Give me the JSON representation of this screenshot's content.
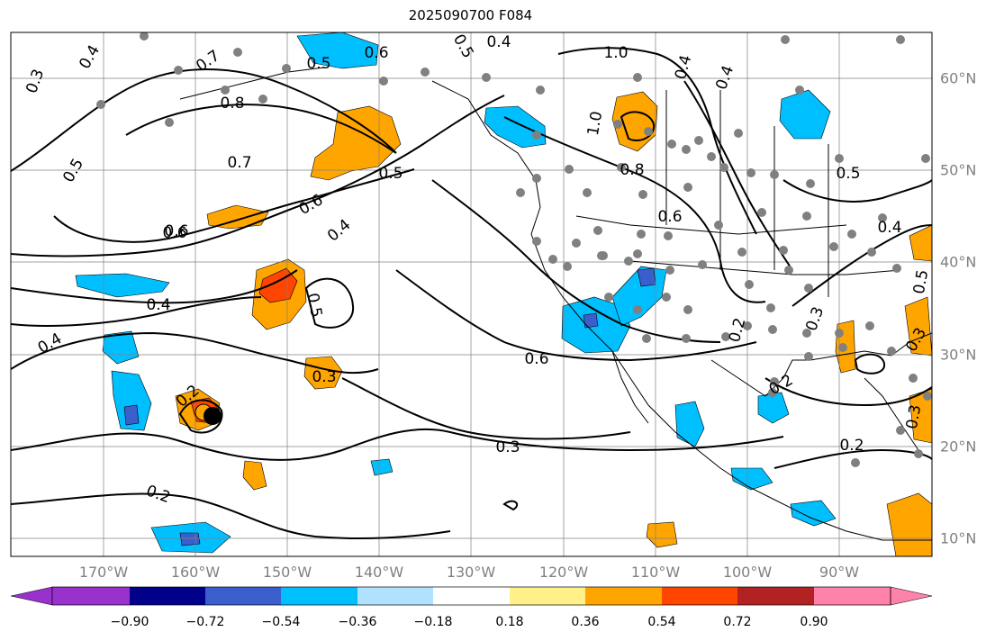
{
  "title": "2025090700 F084",
  "lon_labels": [
    "170°W",
    "160°W",
    "150°W",
    "140°W",
    "130°W",
    "120°W",
    "110°W",
    "100°W",
    "90°W"
  ],
  "lat_labels": [
    "60°N",
    "50°N",
    "40°N",
    "30°N",
    "20°N",
    "10°N"
  ],
  "colorbar": {
    "ticks": [
      "−0.90",
      "−0.72",
      "−0.54",
      "−0.36",
      "−0.18",
      "0.18",
      "0.36",
      "0.54",
      "0.72",
      "0.90"
    ],
    "colors": [
      "#9932cc",
      "#00008b",
      "#3a5fcd",
      "#00bfff",
      "#b0e2ff",
      "#ffffff",
      "#fff08a",
      "#ffa500",
      "#ff4500",
      "#b22222",
      "#ff82ab"
    ]
  },
  "contour_labels": [
    "0.3",
    "0.4",
    "0.7",
    "0.8",
    "0.5",
    "0.6",
    "0.5",
    "0.6",
    "0.4",
    "0.5",
    "0.4",
    "1.0",
    "0.4",
    "1.0",
    "0.8",
    "0.6",
    "0.5",
    "0.4",
    "0.5",
    "0.3",
    "0.6",
    "0.7",
    "0.6",
    "0.5",
    "0.4",
    "0.4",
    "0.5",
    "0.3",
    "0.4",
    "0.3",
    "0.6",
    "0.3",
    "0.2",
    "0.2",
    "0.2",
    "0.3",
    "0.2",
    "0.2"
  ],
  "fill_colors": {
    "blue": "#00bfff",
    "dark_blue": "#3a5fcd",
    "orange": "#ffa500",
    "red": "#ff4500",
    "yellow": "#fff08a"
  },
  "station_color": "#808080"
}
